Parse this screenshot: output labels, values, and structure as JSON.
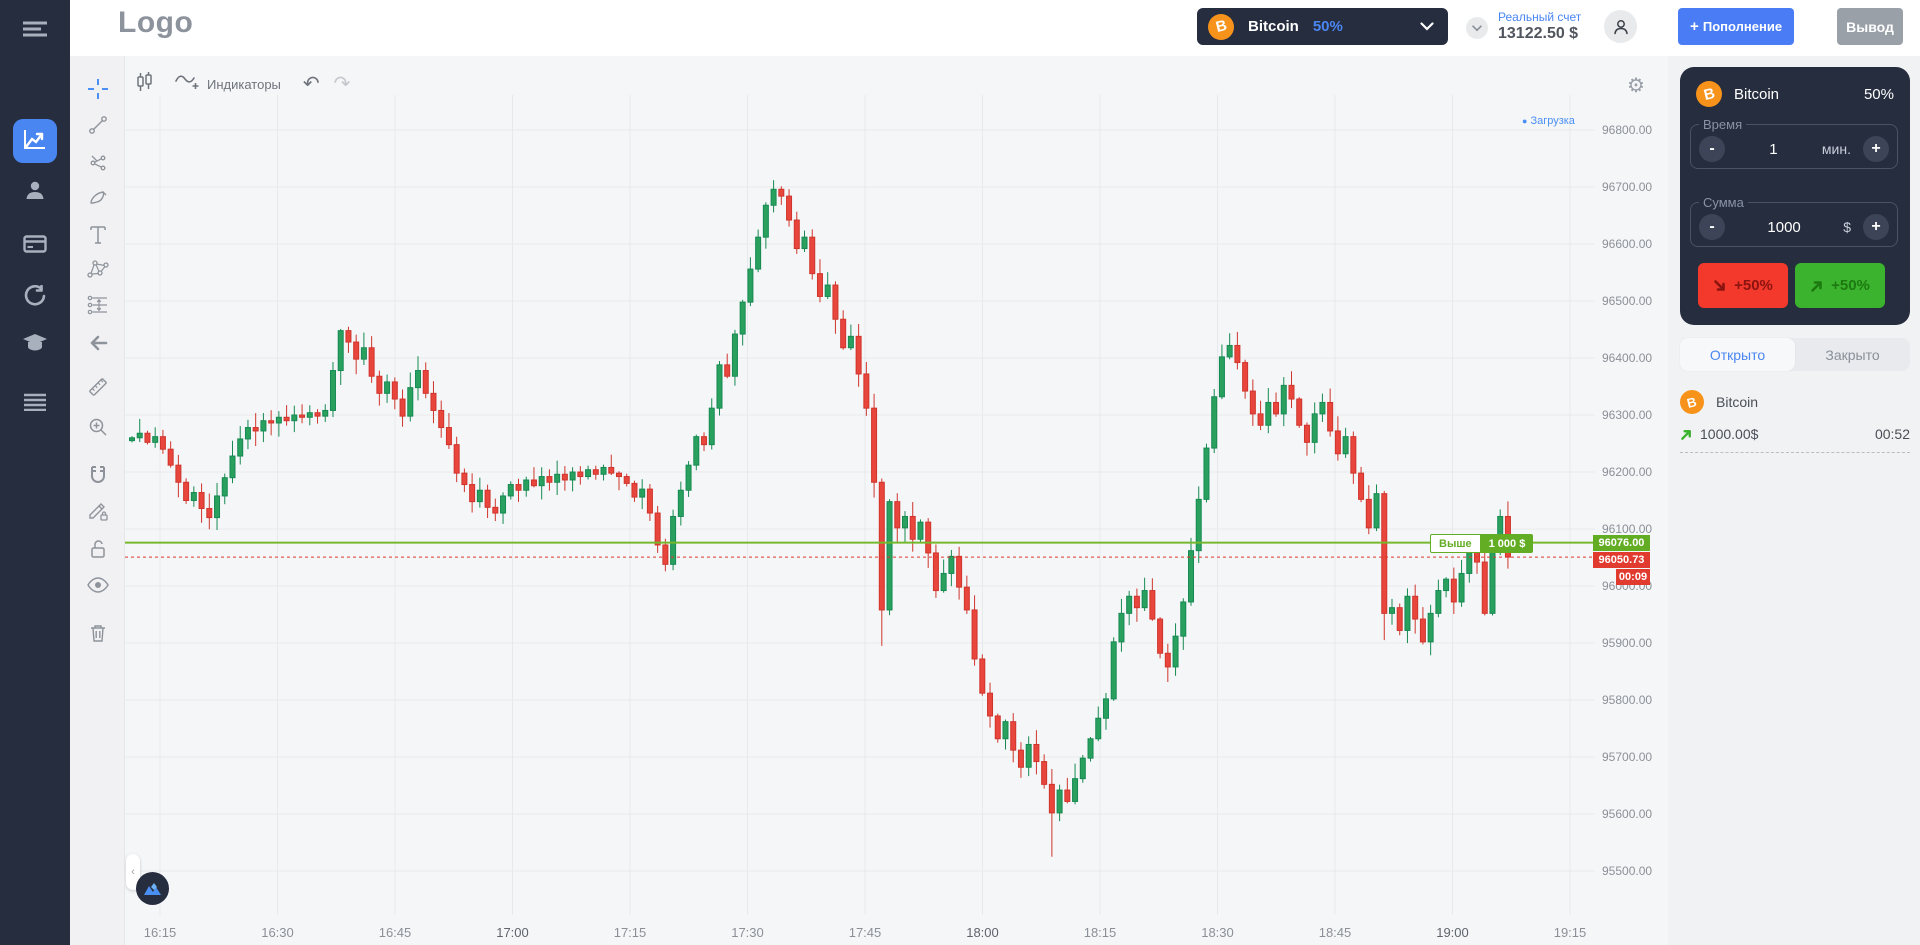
{
  "topbar": {
    "logo": "Logo",
    "asset_selector": {
      "name": "Bitcoin",
      "payout": "50%"
    },
    "account": {
      "type_label": "Реальный счет",
      "balance": "13122.50 $"
    },
    "deposit_label": "Пополнение",
    "withdraw_label": "Вывод"
  },
  "sidebar": {
    "items": [
      "menu-icon",
      "chart-icon",
      "profile-icon",
      "payments-icon",
      "history-icon",
      "education-icon",
      "list-icon"
    ],
    "active_item": "chart-icon"
  },
  "chart_toolbar": {
    "indicators_label": "Индикаторы",
    "actions": [
      "candle-settings-icon",
      "indicators-icon",
      "undo-icon",
      "redo-icon"
    ],
    "tools": [
      "crosshair-icon",
      "trend-line-icon",
      "multi-line-icon",
      "brush-icon",
      "text-icon",
      "pattern-icon",
      "position-icon",
      "arrow-left-icon",
      "ruler-icon",
      "zoom-in-icon",
      "magnet-icon",
      "draw-lock-icon",
      "lock-icon",
      "eye-icon",
      "trash-icon"
    ]
  },
  "chart": {
    "loading_label": "Загрузка",
    "badge": {
      "direction_label": "Выше",
      "amount_label": "1 000 $"
    },
    "labels": {
      "strike_price": "96076.00",
      "current_price": "96050.73",
      "countdown": "00:09"
    }
  },
  "chart_data": {
    "type": "candlestick",
    "asset": "Bitcoin",
    "time_ticks": [
      "16:15",
      "16:30",
      "16:45",
      "17:00",
      "17:15",
      "17:30",
      "17:45",
      "18:00",
      "18:15",
      "18:30",
      "18:45",
      "19:00",
      "19:15"
    ],
    "price_ticks": [
      "96800.00",
      "96700.00",
      "96600.00",
      "96500.00",
      "96400.00",
      "96300.00",
      "96200.00",
      "96100.00",
      "96000.00",
      "95900.00",
      "95800.00",
      "95700.00",
      "95600.00",
      "95500.00"
    ],
    "price_max": 96800,
    "price_min": 95500,
    "price_step": 100,
    "strike_price": 96076.0,
    "current_price": 96050.73,
    "first_open": 96255,
    "closes": [
      96260,
      96268,
      96252,
      96262,
      96240,
      96212,
      96182,
      96150,
      96164,
      96136,
      96120,
      96158,
      96190,
      96228,
      96258,
      96278,
      96272,
      96290,
      96286,
      96296,
      96290,
      96300,
      96296,
      96304,
      96298,
      96308,
      96378,
      96448,
      96428,
      96398,
      96418,
      96368,
      96338,
      96358,
      96328,
      96298,
      96348,
      96378,
      96338,
      96308,
      96278,
      96248,
      96198,
      96178,
      96148,
      96168,
      96138,
      96128,
      96158,
      96178,
      96168,
      96186,
      96176,
      96192,
      96182,
      96196,
      96186,
      96200,
      96192,
      96204,
      96196,
      96208,
      96198,
      96192,
      96180,
      96156,
      96170,
      96128,
      96072,
      96038,
      96122,
      96168,
      96212,
      96262,
      96248,
      96312,
      96388,
      96368,
      96442,
      96498,
      96556,
      96612,
      96668,
      96696,
      96684,
      96642,
      96592,
      96612,
      96548,
      96508,
      96528,
      96468,
      96418,
      96438,
      96372,
      96312,
      96182,
      95958,
      96148,
      96102,
      96122,
      96082,
      96112,
      96058,
      95992,
      96022,
      96052,
      95998,
      95958,
      95872,
      95812,
      95772,
      95732,
      95762,
      95712,
      95682,
      95722,
      95692,
      95652,
      95602,
      95642,
      95622,
      95662,
      95698,
      95732,
      95768,
      95802,
      95902,
      95952,
      95982,
      95962,
      95992,
      95942,
      95882,
      95858,
      95912,
      95972,
      96062,
      96152,
      96242,
      96332,
      96402,
      96422,
      96392,
      96342,
      96302,
      96282,
      96322,
      96302,
      96352,
      96328,
      96282,
      96252,
      96302,
      96322,
      96272,
      96232,
      96262,
      96198,
      96152,
      96102,
      96162,
      95952,
      95962,
      95922,
      95982,
      95942,
      95902,
      95952,
      95992,
      96012,
      95972,
      96022,
      96062,
      96042,
      95952,
      96072,
      96122,
      96050.73
    ],
    "wick_overrides": {
      "83": {
        "high": 96712
      },
      "97": {
        "low": 95895
      },
      "119": {
        "low": 95525
      },
      "162": {
        "low": 95905
      }
    },
    "colors": {
      "up": "#2aa05f",
      "up_border": "#168a52",
      "down": "#e8463c",
      "down_border": "#cf352c",
      "strike_line": "#76b82c",
      "current_line": "#e0362b",
      "grid": "#e7e9ec"
    }
  },
  "trade_panel": {
    "asset": "Bitcoin",
    "payout": "50%",
    "time": {
      "label": "Время",
      "value": "1",
      "unit": "мин."
    },
    "amount": {
      "label": "Сумма",
      "value": "1000",
      "unit": "$"
    },
    "down_label": "+50%",
    "up_label": "+50%"
  },
  "positions": {
    "tabs": [
      {
        "label": "Открыто"
      },
      {
        "label": "Закрыто"
      }
    ],
    "active_tab": 0,
    "open_trade": {
      "asset": "Bitcoin",
      "amount": "1000.00$",
      "time_left": "00:52",
      "direction": "up"
    }
  }
}
